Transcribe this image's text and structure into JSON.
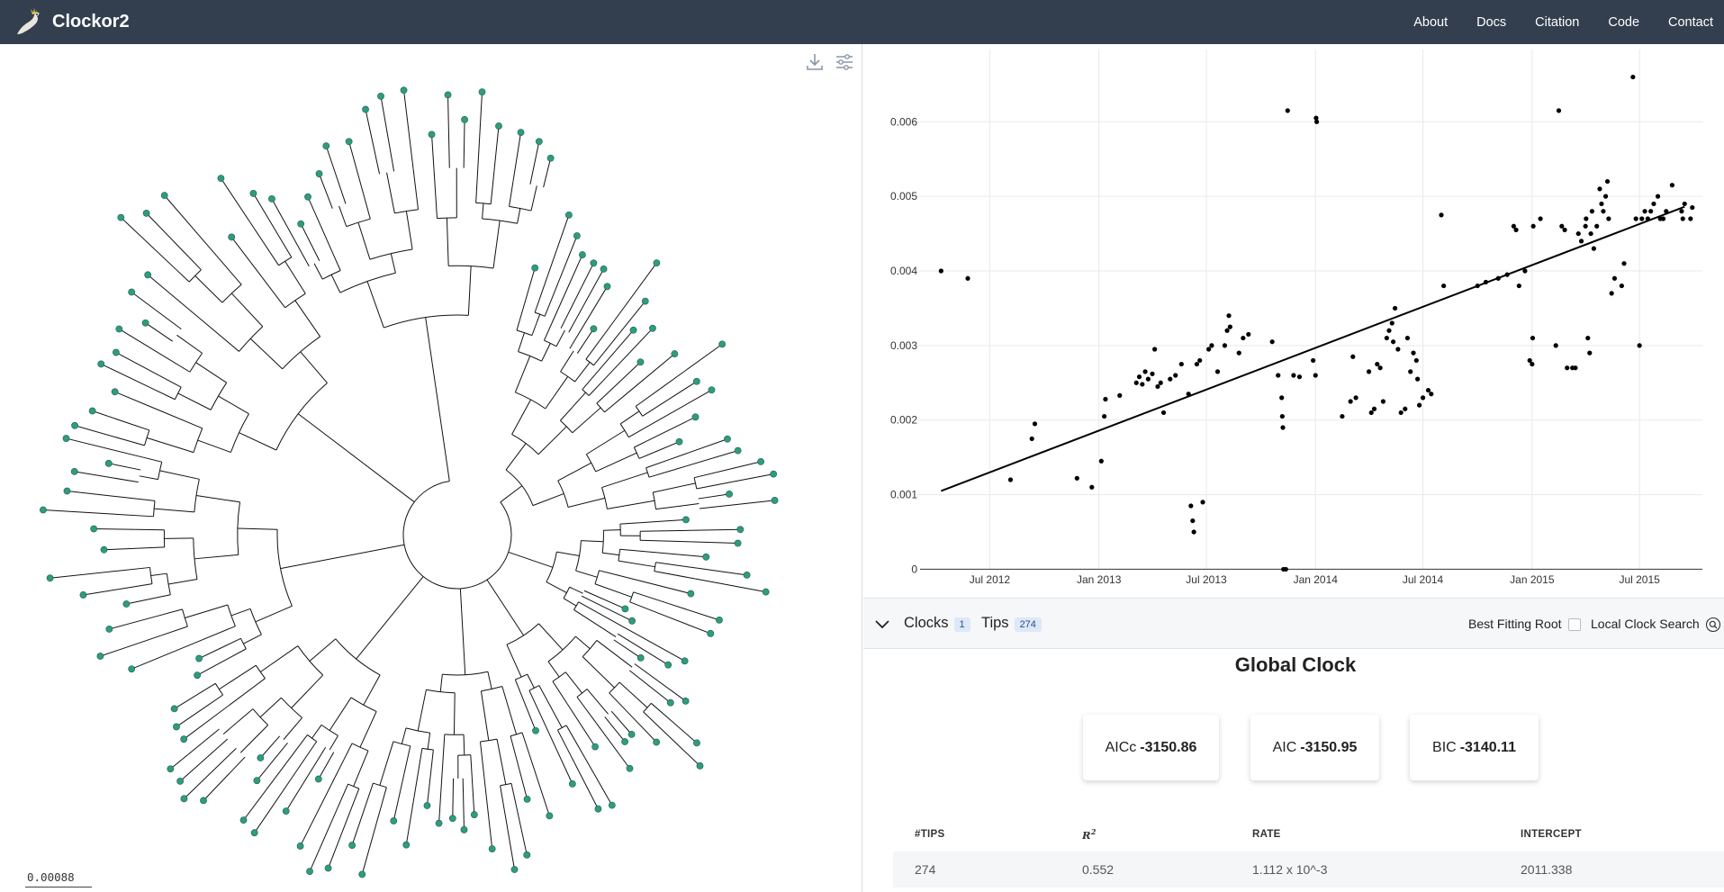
{
  "app": {
    "name": "Clockor2",
    "logo_icon": "cockatoo-icon"
  },
  "nav": {
    "items": [
      {
        "label": "About"
      },
      {
        "label": "Docs"
      },
      {
        "label": "Citation"
      },
      {
        "label": "Code"
      },
      {
        "label": "Contact"
      }
    ]
  },
  "tree": {
    "toolbar": [
      {
        "icon": "download-icon"
      },
      {
        "icon": "sliders-icon"
      }
    ],
    "scale_label": "0.00088",
    "tip_color": "#2e9c7e",
    "branch_color": "#111111"
  },
  "chart_data": {
    "type": "scatter",
    "title": "",
    "xlabel": "",
    "ylabel": "",
    "x_ticks": [
      "Jul 2012",
      "Jan 2013",
      "Jul 2013",
      "Jan 2014",
      "Jul 2014",
      "Jan 2015",
      "Jul 2015"
    ],
    "y_ticks": [
      "0",
      "0.001",
      "0.002",
      "0.003",
      "0.004",
      "0.005",
      "0.006"
    ],
    "xlim": [
      "2012-03-01",
      "2015-10-15"
    ],
    "ylim": [
      -0.0002,
      0.0068
    ],
    "grid": true,
    "regression_line": {
      "from": [
        "2012-04-10",
        0.00105
      ],
      "to": [
        "2015-09-15",
        0.00486
      ]
    },
    "points": [
      [
        "2012-04-10",
        0.004
      ],
      [
        "2012-05-25",
        0.0039
      ],
      [
        "2012-08-05",
        0.0012
      ],
      [
        "2012-09-10",
        0.00175
      ],
      [
        "2012-09-15",
        0.00195
      ],
      [
        "2012-11-25",
        0.00122
      ],
      [
        "2012-12-20",
        0.0011
      ],
      [
        "2013-01-05",
        0.00145
      ],
      [
        "2013-01-10",
        0.00205
      ],
      [
        "2013-01-12",
        0.00228
      ],
      [
        "2013-02-05",
        0.00233
      ],
      [
        "2013-03-05",
        0.0025
      ],
      [
        "2013-03-10",
        0.00258
      ],
      [
        "2013-03-15",
        0.00248
      ],
      [
        "2013-03-20",
        0.00265
      ],
      [
        "2013-03-25",
        0.00255
      ],
      [
        "2013-04-01",
        0.00262
      ],
      [
        "2013-04-05",
        0.00295
      ],
      [
        "2013-04-10",
        0.00245
      ],
      [
        "2013-04-15",
        0.0025
      ],
      [
        "2013-04-20",
        0.0021
      ],
      [
        "2013-05-01",
        0.00255
      ],
      [
        "2013-05-10",
        0.0026
      ],
      [
        "2013-05-20",
        0.00275
      ],
      [
        "2013-06-01",
        0.00235
      ],
      [
        "2013-06-05",
        0.00085
      ],
      [
        "2013-06-08",
        0.00065
      ],
      [
        "2013-06-10",
        0.0005
      ],
      [
        "2013-06-25",
        0.0009
      ],
      [
        "2013-06-15",
        0.00275
      ],
      [
        "2013-06-20",
        0.0028
      ],
      [
        "2013-07-05",
        0.00295
      ],
      [
        "2013-07-10",
        0.003
      ],
      [
        "2013-07-20",
        0.00265
      ],
      [
        "2013-08-01",
        0.003
      ],
      [
        "2013-08-05",
        0.0032
      ],
      [
        "2013-08-08",
        0.0034
      ],
      [
        "2013-08-10",
        0.00325
      ],
      [
        "2013-08-25",
        0.0029
      ],
      [
        "2013-09-01",
        0.0031
      ],
      [
        "2013-09-10",
        0.00315
      ],
      [
        "2013-10-20",
        0.00305
      ],
      [
        "2013-10-30",
        0.0026
      ],
      [
        "2013-11-05",
        0.0023
      ],
      [
        "2013-11-06",
        0.00205
      ],
      [
        "2013-11-07",
        0.0019
      ],
      [
        "2013-11-08",
        0.0
      ],
      [
        "2013-11-12",
        0.0
      ],
      [
        "2013-11-15",
        0.00615
      ],
      [
        "2013-11-25",
        0.0026
      ],
      [
        "2013-12-05",
        0.00258
      ],
      [
        "2013-12-28",
        0.0028
      ],
      [
        "2014-01-01",
        0.0026
      ],
      [
        "2014-01-02",
        0.00605
      ],
      [
        "2014-01-03",
        0.006
      ],
      [
        "2014-02-15",
        0.00205
      ],
      [
        "2014-03-01",
        0.00225
      ],
      [
        "2014-03-05",
        0.00285
      ],
      [
        "2014-03-10",
        0.0023
      ],
      [
        "2014-04-01",
        0.00265
      ],
      [
        "2014-04-05",
        0.0021
      ],
      [
        "2014-04-10",
        0.00215
      ],
      [
        "2014-04-15",
        0.00275
      ],
      [
        "2014-04-20",
        0.0027
      ],
      [
        "2014-04-25",
        0.00225
      ],
      [
        "2014-05-01",
        0.0031
      ],
      [
        "2014-05-05",
        0.0032
      ],
      [
        "2014-05-10",
        0.0033
      ],
      [
        "2014-05-12",
        0.00305
      ],
      [
        "2014-05-15",
        0.0035
      ],
      [
        "2014-05-20",
        0.00295
      ],
      [
        "2014-05-25",
        0.0021
      ],
      [
        "2014-06-01",
        0.00215
      ],
      [
        "2014-06-05",
        0.0031
      ],
      [
        "2014-06-10",
        0.00265
      ],
      [
        "2014-06-15",
        0.0029
      ],
      [
        "2014-06-20",
        0.0028
      ],
      [
        "2014-06-22",
        0.00255
      ],
      [
        "2014-06-25",
        0.0022
      ],
      [
        "2014-07-01",
        0.0023
      ],
      [
        "2014-07-10",
        0.0024
      ],
      [
        "2014-07-15",
        0.00235
      ],
      [
        "2014-08-01",
        0.00475
      ],
      [
        "2014-08-05",
        0.0038
      ],
      [
        "2014-10-01",
        0.0038
      ],
      [
        "2014-10-15",
        0.00385
      ],
      [
        "2014-11-05",
        0.0039
      ],
      [
        "2014-11-20",
        0.00395
      ],
      [
        "2014-12-01",
        0.0046
      ],
      [
        "2014-12-05",
        0.00455
      ],
      [
        "2014-12-10",
        0.0038
      ],
      [
        "2014-12-20",
        0.004
      ],
      [
        "2014-12-28",
        0.0028
      ],
      [
        "2015-01-01",
        0.00275
      ],
      [
        "2015-01-02",
        0.0031
      ],
      [
        "2015-01-03",
        0.0046
      ],
      [
        "2015-01-15",
        0.0047
      ],
      [
        "2015-02-10",
        0.003
      ],
      [
        "2015-02-15",
        0.00615
      ],
      [
        "2015-02-20",
        0.0046
      ],
      [
        "2015-02-25",
        0.00455
      ],
      [
        "2015-03-01",
        0.0027
      ],
      [
        "2015-03-10",
        0.0027
      ],
      [
        "2015-03-15",
        0.0027
      ],
      [
        "2015-03-20",
        0.0045
      ],
      [
        "2015-03-25",
        0.0044
      ],
      [
        "2015-04-01",
        0.0046
      ],
      [
        "2015-04-02",
        0.0047
      ],
      [
        "2015-04-05",
        0.0031
      ],
      [
        "2015-04-08",
        0.0029
      ],
      [
        "2015-04-10",
        0.0045
      ],
      [
        "2015-04-12",
        0.0048
      ],
      [
        "2015-04-15",
        0.0043
      ],
      [
        "2015-04-20",
        0.0046
      ],
      [
        "2015-04-25",
        0.0051
      ],
      [
        "2015-04-28",
        0.0049
      ],
      [
        "2015-05-01",
        0.0048
      ],
      [
        "2015-05-05",
        0.005
      ],
      [
        "2015-05-08",
        0.0052
      ],
      [
        "2015-05-10",
        0.0047
      ],
      [
        "2015-05-15",
        0.0037
      ],
      [
        "2015-05-20",
        0.0039
      ],
      [
        "2015-06-01",
        0.0038
      ],
      [
        "2015-06-05",
        0.0041
      ],
      [
        "2015-06-20",
        0.0066
      ],
      [
        "2015-06-25",
        0.0047
      ],
      [
        "2015-07-01",
        0.003
      ],
      [
        "2015-07-05",
        0.0047
      ],
      [
        "2015-07-10",
        0.0048
      ],
      [
        "2015-07-15",
        0.0047
      ],
      [
        "2015-07-20",
        0.0048
      ],
      [
        "2015-07-25",
        0.0049
      ],
      [
        "2015-08-01",
        0.005
      ],
      [
        "2015-08-05",
        0.0047
      ],
      [
        "2015-08-10",
        0.0047
      ],
      [
        "2015-08-15",
        0.0048
      ],
      [
        "2015-08-25",
        0.00515
      ],
      [
        "2015-09-10",
        0.0048
      ],
      [
        "2015-09-12",
        0.0047
      ],
      [
        "2015-09-15",
        0.0049
      ],
      [
        "2015-09-25",
        0.0047
      ],
      [
        "2015-09-28",
        0.00485
      ]
    ]
  },
  "clocks_bar": {
    "clocks_label": "Clocks",
    "clocks_count": "1",
    "tips_label": "Tips",
    "tips_count": "274",
    "best_root_label": "Best Fitting Root",
    "local_search_label": "Local Clock Search"
  },
  "global_clock": {
    "title": "Global Clock",
    "stats": [
      {
        "name": "AICc",
        "value": "-3150.86"
      },
      {
        "name": "AIC",
        "value": "-3150.95"
      },
      {
        "name": "BIC",
        "value": "-3140.11"
      }
    ],
    "table": {
      "headers": [
        "#TIPS",
        "R",
        "RATE",
        "INTERCEPT"
      ],
      "r_superscript": "2",
      "rows": [
        [
          "274",
          "0.552",
          "1.112 x 10^-3",
          "2011.338"
        ]
      ]
    }
  }
}
